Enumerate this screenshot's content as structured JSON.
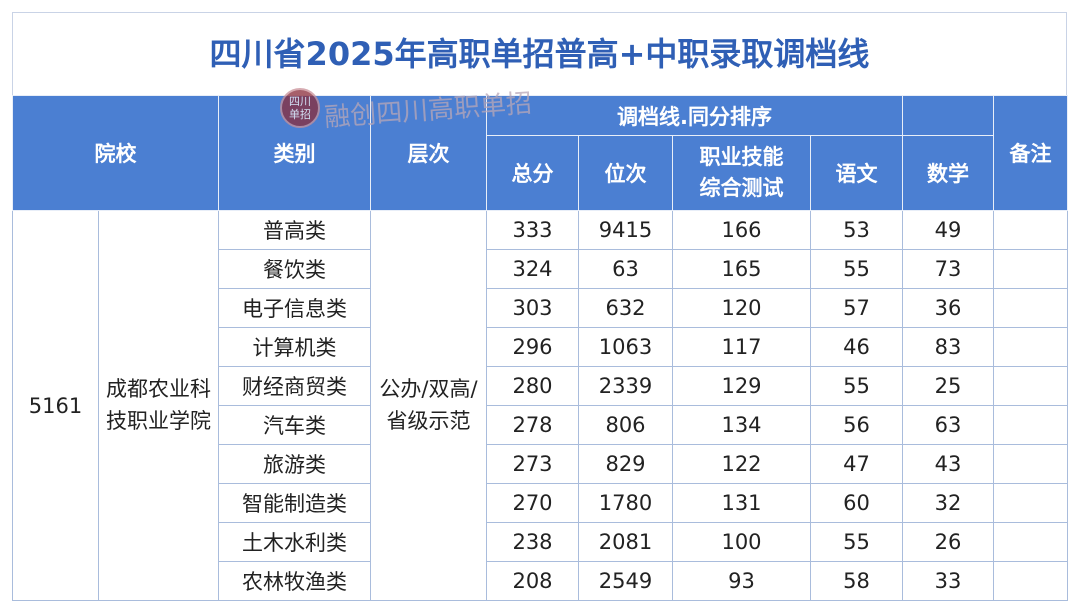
{
  "title": "四川省2025年高职单招普高+中职录取调档线",
  "watermark": {
    "seal_top": "四川",
    "seal_bottom": "单招",
    "text": "融创四川高职单招"
  },
  "table": {
    "headers": {
      "school": "院校",
      "category": "类别",
      "level": "层次",
      "group": "调档线.同分排序",
      "total": "总分",
      "rank": "位次",
      "skill": "职业技能综合测试",
      "chinese": "语文",
      "math": "数学",
      "note": "备注"
    },
    "school_code": "5161",
    "school_name": "成都农业科技职业学院",
    "level": "公办/双高/省级示范",
    "rows": [
      [
        "普高类",
        333,
        9415,
        166,
        53,
        49
      ],
      [
        "餐饮类",
        324,
        63,
        165,
        55,
        73
      ],
      [
        "电子信息类",
        303,
        632,
        120,
        57,
        36
      ],
      [
        "计算机类",
        296,
        1063,
        117,
        46,
        83
      ],
      [
        "财经商贸类",
        280,
        2339,
        129,
        55,
        25
      ],
      [
        "汽车类",
        278,
        806,
        134,
        56,
        63
      ],
      [
        "旅游类",
        273,
        829,
        122,
        47,
        43
      ],
      [
        "智能制造类",
        270,
        1780,
        131,
        60,
        32
      ],
      [
        "土木水利类",
        238,
        2081,
        100,
        55,
        26
      ],
      [
        "农林牧渔类",
        208,
        2549,
        93,
        58,
        33
      ]
    ]
  }
}
